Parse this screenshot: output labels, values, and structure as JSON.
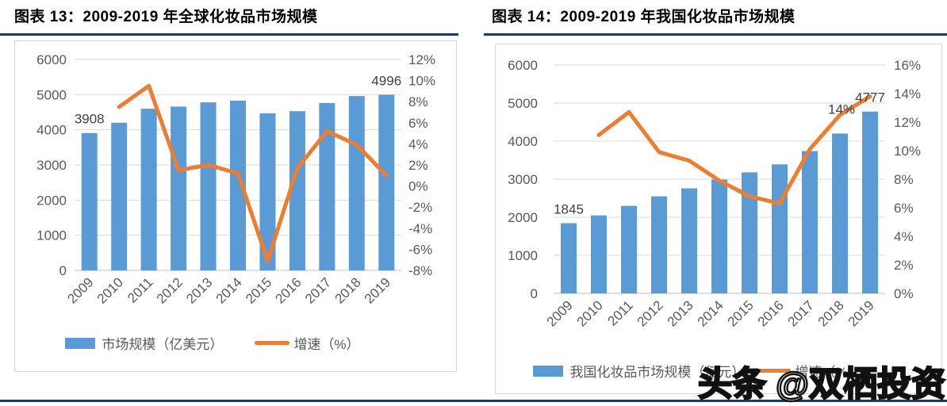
{
  "page": {
    "background": "#FFFFFF"
  },
  "watermark": {
    "text": "头条 @双栖投资"
  },
  "colors": {
    "bar_blue": "#5B9BD5",
    "line_orange": "#ED7D31",
    "rule_navy": "#1F3864",
    "axis_text": "#595959",
    "gridline": "#D9D9D9",
    "data_label_text": "#404040"
  },
  "chart_data": [
    {
      "id": "fig13",
      "type": "bar+line combo",
      "title": "图表 13：2009-2019 年全球化妆品市场规模",
      "categories": [
        "2009",
        "2010",
        "2011",
        "2012",
        "2013",
        "2014",
        "2015",
        "2016",
        "2017",
        "2018",
        "2019"
      ],
      "series": [
        {
          "name": "市场规模（亿美元）",
          "type": "bar",
          "axis": "left",
          "color": "#5B9BD5",
          "values": [
            3908,
            4200,
            4600,
            4660,
            4780,
            4830,
            4470,
            4530,
            4760,
            4960,
            4996
          ]
        },
        {
          "name": "增速（%）",
          "type": "line",
          "axis": "right",
          "color": "#ED7D31",
          "values": [
            null,
            7.5,
            9.5,
            1.5,
            2.0,
            1.2,
            -7.1,
            1.7,
            5.2,
            3.9,
            1.0
          ]
        }
      ],
      "left_axis": {
        "min": 0,
        "max": 6000,
        "step": 1000,
        "tick_labels": [
          "0",
          "1000",
          "2000",
          "3000",
          "4000",
          "5000",
          "6000"
        ]
      },
      "right_axis": {
        "min": -8,
        "max": 12,
        "step": 2,
        "tick_labels": [
          "-8%",
          "-6%",
          "-4%",
          "-2%",
          "0%",
          "2%",
          "4%",
          "6%",
          "8%",
          "10%",
          "12%"
        ]
      },
      "data_labels": [
        {
          "series": 0,
          "index": 0,
          "text": "3908"
        },
        {
          "series": 0,
          "index": 10,
          "text": "4996"
        }
      ],
      "legend_position": "bottom",
      "gridlines": true
    },
    {
      "id": "fig14",
      "type": "bar+line combo",
      "title": "图表 14：2009-2019 年我国化妆品市场规模",
      "categories": [
        "2009",
        "2010",
        "2011",
        "2012",
        "2013",
        "2014",
        "2015",
        "2016",
        "2017",
        "2018",
        "2019"
      ],
      "series": [
        {
          "name": "我国化妆品市场规模（亿元）",
          "type": "bar",
          "axis": "left",
          "color": "#5B9BD5",
          "values": [
            1845,
            2050,
            2300,
            2550,
            2760,
            2990,
            3180,
            3390,
            3740,
            4200,
            4777
          ]
        },
        {
          "name": "增速（%）",
          "type": "line",
          "axis": "right",
          "color": "#ED7D31",
          "values": [
            null,
            11.1,
            12.7,
            9.9,
            9.3,
            7.9,
            6.8,
            6.3,
            10.1,
            12.5,
            13.8
          ]
        }
      ],
      "left_axis": {
        "min": 0,
        "max": 6000,
        "step": 1000,
        "tick_labels": [
          "0",
          "1000",
          "2000",
          "3000",
          "4000",
          "5000",
          "6000"
        ]
      },
      "right_axis": {
        "min": 0,
        "max": 16,
        "step": 2,
        "tick_labels": [
          "0%",
          "2%",
          "4%",
          "6%",
          "8%",
          "10%",
          "12%",
          "14%",
          "16%"
        ]
      },
      "data_labels": [
        {
          "series": 0,
          "index": 0,
          "text": "1845"
        },
        {
          "series": 0,
          "index": 10,
          "text": "4777"
        },
        {
          "series": 1,
          "index": 10,
          "text": "14%",
          "dx": -36,
          "dy": 22
        }
      ],
      "legend_position": "bottom",
      "gridlines": true
    }
  ]
}
